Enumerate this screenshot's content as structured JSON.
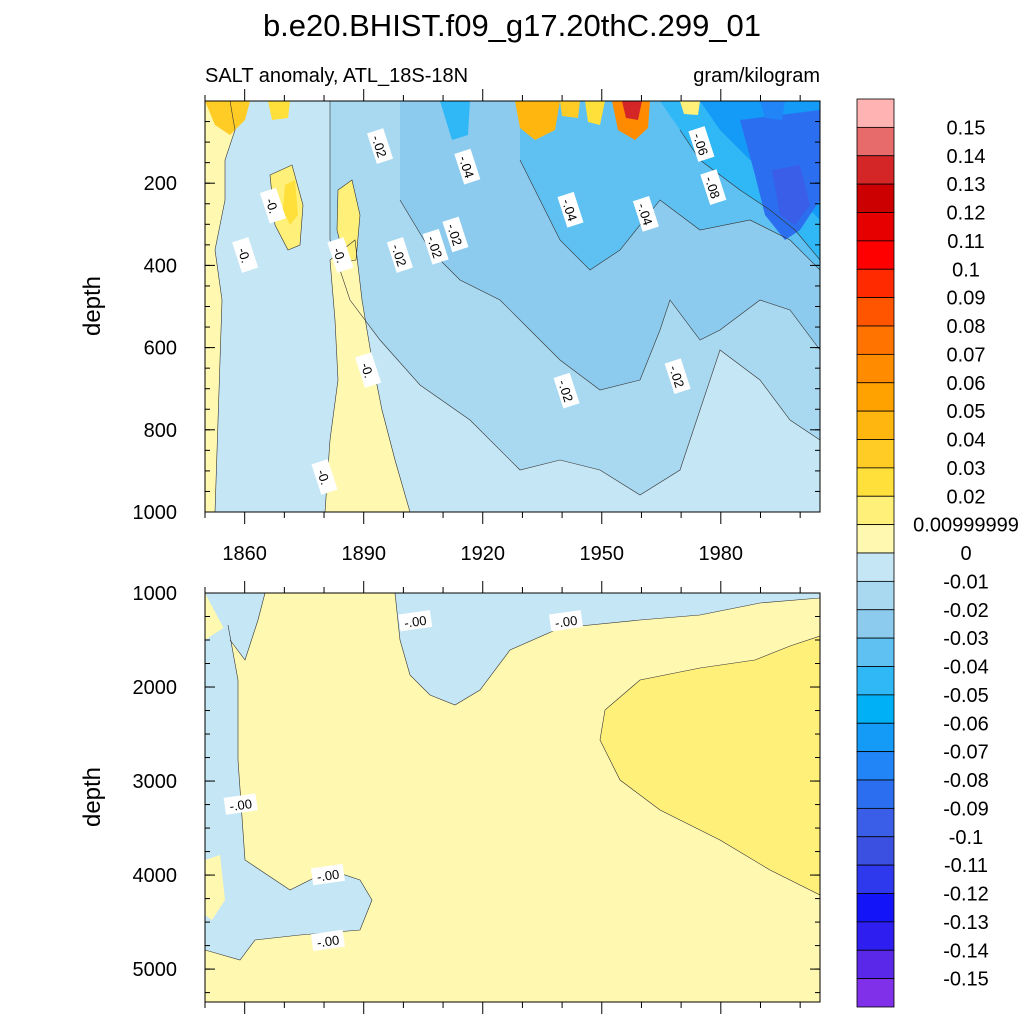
{
  "chart_data": {
    "type": "heatmap",
    "title": "b.e20.BHIST.f09_g17.20thC.299_01",
    "subtitle_left": "SALT anomaly, ATL_18S-18N",
    "subtitle_right": "gram/kilogram",
    "panels": [
      {
        "name": "upper",
        "ylabel": "depth",
        "ylim": [
          1000,
          0
        ],
        "xlim": [
          1850,
          2005
        ],
        "yticks": [
          200,
          400,
          600,
          800,
          1000
        ],
        "xticks": [
          1860,
          1890,
          1920,
          1950,
          1980
        ],
        "contour_labels": [
          {
            "text": "-.02",
            "x": 1894,
            "y": 110
          },
          {
            "text": "-.04",
            "x": 1916,
            "y": 160
          },
          {
            "text": "-0.",
            "x": 1867,
            "y": 255
          },
          {
            "text": "-.04",
            "x": 1942,
            "y": 265
          },
          {
            "text": "-.04",
            "x": 1961,
            "y": 275
          },
          {
            "text": "-.06",
            "x": 1975,
            "y": 105
          },
          {
            "text": "-.08",
            "x": 1978,
            "y": 210
          },
          {
            "text": "-.02",
            "x": 1913,
            "y": 325
          },
          {
            "text": "-.02",
            "x": 1908,
            "y": 355
          },
          {
            "text": "-.02",
            "x": 1899,
            "y": 375
          },
          {
            "text": "-0.",
            "x": 1884,
            "y": 375
          },
          {
            "text": "-0.",
            "x": 1860,
            "y": 375
          },
          {
            "text": "-0.",
            "x": 1891,
            "y": 655
          },
          {
            "text": "-.02",
            "x": 1941,
            "y": 705
          },
          {
            "text": "-.02",
            "x": 1969,
            "y": 670
          },
          {
            "text": "-0.",
            "x": 1880,
            "y": 915
          }
        ]
      },
      {
        "name": "lower",
        "ylabel": "depth",
        "ylim": [
          5350,
          1000
        ],
        "xlim": [
          1850,
          2005
        ],
        "yticks": [
          1000,
          2000,
          3000,
          4000,
          5000
        ],
        "contour_labels": [
          {
            "text": "-.00",
            "x": 1903,
            "y": 1300
          },
          {
            "text": "-.00",
            "x": 1941,
            "y": 1300
          },
          {
            "text": "-.00",
            "x": 1859,
            "y": 3250
          },
          {
            "text": "-.00",
            "x": 1881,
            "y": 4000
          },
          {
            "text": "-.00",
            "x": 1881,
            "y": 4700
          }
        ]
      }
    ],
    "colorbar": {
      "labels": [
        "0.15",
        "0.14",
        "0.13",
        "0.12",
        "0.11",
        "0.1",
        "0.09",
        "0.08",
        "0.07",
        "0.06",
        "0.05",
        "0.04",
        "0.03",
        "0.02",
        "0.00999999",
        "0",
        "-0.01",
        "-0.02",
        "-0.03",
        "-0.04",
        "-0.05",
        "-0.06",
        "-0.07",
        "-0.08",
        "-0.09",
        "-0.1",
        "-0.11",
        "-0.12",
        "-0.13",
        "-0.14",
        "-0.15"
      ],
      "colors": [
        "#ffb3b3",
        "#e86b6b",
        "#d42626",
        "#cc0000",
        "#e60000",
        "#ff0000",
        "#ff2a00",
        "#ff5500",
        "#ff7300",
        "#ff8c00",
        "#ffa200",
        "#ffb70f",
        "#ffcc26",
        "#ffdf3a",
        "#fff07a",
        "#fff8b0",
        "#c5e6f5",
        "#a9d9f0",
        "#8ccbee",
        "#5ec1f2",
        "#30b7f5",
        "#00b0f6",
        "#139bf7",
        "#2185f8",
        "#2b6ff0",
        "#3a5ee8",
        "#3b50e0",
        "#2e38ec",
        "#1414f8",
        "#2e1ef0",
        "#5a28e8",
        "#8030e8"
      ]
    }
  }
}
